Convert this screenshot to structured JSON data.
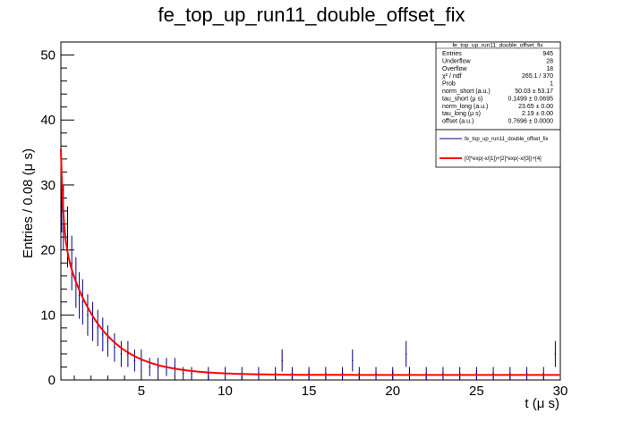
{
  "chart_data": {
    "type": "histogram-with-fit",
    "title": "fe_top_up_run11_double_offset_fix",
    "xlabel": "t (μ s)",
    "ylabel": "Entries / 0.08 (μ s)",
    "xlim": [
      0.2,
      30
    ],
    "ylim": [
      0,
      52
    ],
    "x_ticks": [
      5,
      10,
      15,
      20,
      25,
      30
    ],
    "y_ticks": [
      0,
      10,
      20,
      30,
      40,
      50
    ],
    "grid": false,
    "bin_width": 0.08,
    "data_color": "#000080",
    "fit_color": "#ff0000",
    "stats_box": {
      "title": "fe_top_up_run11_double_offset_fix",
      "rows": [
        {
          "label": "Entries",
          "value": "945"
        },
        {
          "label": "Underflow",
          "value": "28"
        },
        {
          "label": "Overflow",
          "value": "18"
        },
        {
          "label": "χ² / ndf",
          "value": "265.1 / 370"
        },
        {
          "label": "Prob",
          "value": "1"
        },
        {
          "label": "norm_short (a.u.)",
          "value": "50.03 ± 53.17"
        },
        {
          "label": "tau_short (μ s)",
          "value": "0.1499 ± 0.0695"
        },
        {
          "label": "norm_long (a.u.)",
          "value": "23.65 ± 0.00"
        },
        {
          "label": "tau_long (μ s)",
          "value": "2.19 ± 0.00"
        },
        {
          "label": "offset (a.u.)",
          "value": "0.7696 ± 0.0000"
        }
      ]
    },
    "legend": {
      "position": "top-right",
      "entries": [
        {
          "label": "fe_top_up_run11_double_offset_fix",
          "kind": "data"
        },
        {
          "label": "[0]*exp(-x/[1])+[2]*exp(-x/[3])+[4]",
          "kind": "fit"
        }
      ]
    },
    "fit": {
      "norm_short": 50.03,
      "tau_short": 0.1499,
      "norm_long": 23.65,
      "tau_long": 2.19,
      "offset": 0.7696
    },
    "series": [
      {
        "kind": "points-with-errors",
        "x": [
          0.25,
          0.35,
          0.6,
          0.85,
          1.1,
          1.3,
          1.5,
          1.8,
          2.1,
          2.4,
          2.7,
          3.0,
          3.4,
          3.8,
          4.2,
          4.6,
          5.0,
          5.5,
          6.0,
          6.5,
          7.0,
          7.5,
          8.0,
          9.0,
          10.0,
          11.0,
          12.0,
          13.0,
          13.4,
          14.0,
          15.0,
          16.0,
          17.0,
          17.6,
          18.0,
          19.0,
          20.0,
          20.8,
          21.0,
          22.0,
          23.0,
          24.0,
          25.0,
          26.0,
          27.0,
          28.0,
          29.0,
          29.7
        ],
        "y": [
          28,
          25,
          22,
          18,
          15,
          13,
          12,
          10,
          9,
          8,
          7,
          6,
          5,
          4,
          4,
          3,
          3,
          2,
          2,
          2,
          2,
          1,
          1,
          1,
          1,
          1,
          1,
          1,
          3,
          1,
          1,
          1,
          1,
          3,
          1,
          1,
          1,
          4,
          1,
          1,
          1,
          1,
          1,
          1,
          1,
          1,
          1,
          4
        ],
        "yerr": [
          5.3,
          5,
          4.7,
          4.2,
          3.9,
          3.6,
          3.5,
          3.2,
          3,
          2.8,
          2.6,
          2.4,
          2.2,
          2,
          2,
          1.7,
          1.7,
          1.4,
          1.4,
          1.4,
          1.4,
          1,
          1,
          1,
          1,
          1,
          1,
          1,
          1.7,
          1,
          1,
          1,
          1,
          1.7,
          1,
          1,
          1,
          2,
          1,
          1,
          1,
          1,
          1,
          1,
          1,
          1,
          1,
          2
        ]
      }
    ]
  }
}
